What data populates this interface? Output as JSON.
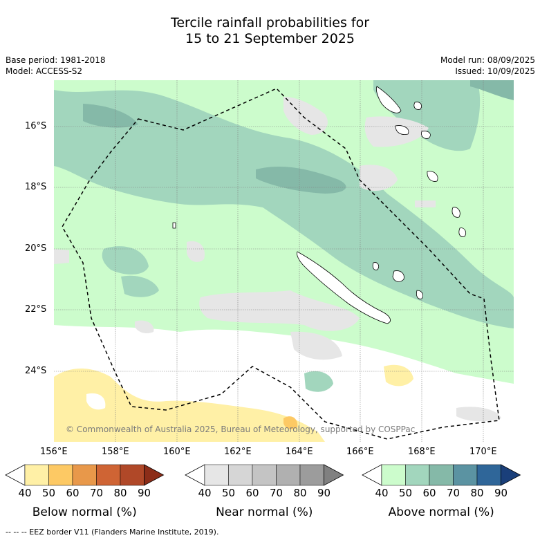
{
  "title_line1": "Tercile rainfall probabilities for",
  "title_line2": "15 to 21 September 2025",
  "base_period": "Base period: 1981-2018",
  "model": "Model: ACCESS-S2",
  "model_run": "Model run: 08/09/2025",
  "issued": "Issued: 10/09/2025",
  "copyright": "© Commonwealth of Australia 2025, Bureau of Meteorology, supported by COSPPac",
  "lat_ticks": [
    "16°S",
    "18°S",
    "20°S",
    "22°S",
    "24°S"
  ],
  "lon_ticks": [
    "156°E",
    "158°E",
    "160°E",
    "162°E",
    "164°E",
    "166°E",
    "168°E",
    "170°E"
  ],
  "colorbars": [
    {
      "name": "below",
      "label": "Below normal (%)",
      "ticks": [
        "40",
        "50",
        "60",
        "70",
        "80",
        "90"
      ],
      "colors": [
        "#ffffff",
        "#fff0a6",
        "#fdc964",
        "#e8984a",
        "#cf6434",
        "#b04828",
        "#8c2d18"
      ]
    },
    {
      "name": "near",
      "label": "Near normal (%)",
      "ticks": [
        "40",
        "50",
        "60",
        "70",
        "80",
        "90"
      ],
      "colors": [
        "#ffffff",
        "#e6e6e6",
        "#d6d6d6",
        "#c4c4c4",
        "#b0b0b0",
        "#9c9c9c",
        "#808080"
      ]
    },
    {
      "name": "above",
      "label": "Above normal (%)",
      "ticks": [
        "40",
        "50",
        "60",
        "70",
        "80",
        "90"
      ],
      "colors": [
        "#ffffff",
        "#ccfccc",
        "#a2d6bd",
        "#85b9a8",
        "#5b93a2",
        "#2f6699",
        "#1a3f7a"
      ]
    }
  ],
  "footer": "--  --  -- EEZ border V11 (Flanders Marine Institute, 2019)."
}
